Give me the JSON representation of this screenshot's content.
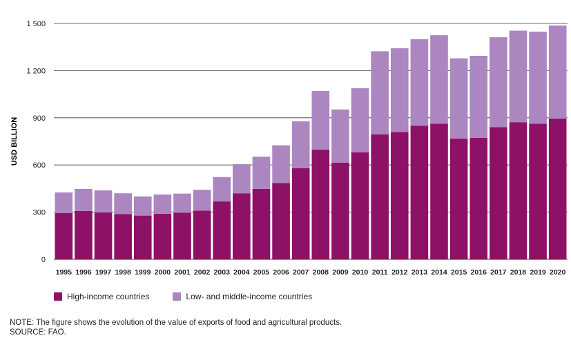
{
  "chart_data": {
    "type": "bar",
    "stacked": true,
    "categories": [
      "1995",
      "1996",
      "1997",
      "1998",
      "1999",
      "2000",
      "2001",
      "2002",
      "2003",
      "2004",
      "2005",
      "2006",
      "2007",
      "2008",
      "2009",
      "2010",
      "2011",
      "2012",
      "2013",
      "2014",
      "2015",
      "2016",
      "2017",
      "2018",
      "2019",
      "2020"
    ],
    "series": [
      {
        "name": "High-income countries",
        "color": "#8e1168",
        "values": [
          295,
          308,
          298,
          288,
          278,
          290,
          296,
          310,
          368,
          420,
          448,
          485,
          580,
          698,
          615,
          680,
          795,
          810,
          850,
          862,
          768,
          772,
          840,
          872,
          862,
          895
        ]
      },
      {
        "name": "Low- and middle-income countries",
        "color": "#ab86c0",
        "values": [
          130,
          140,
          140,
          132,
          122,
          122,
          122,
          132,
          155,
          185,
          205,
          240,
          298,
          372,
          338,
          408,
          528,
          532,
          550,
          563,
          510,
          522,
          572,
          582,
          586,
          592
        ]
      }
    ],
    "ylabel": "USD BILLION",
    "ylim": [
      0,
      1500
    ],
    "yticks": [
      {
        "value": 0,
        "label": "0"
      },
      {
        "value": 300,
        "label": "300"
      },
      {
        "value": 600,
        "label": "600"
      },
      {
        "value": 900,
        "label": "900"
      },
      {
        "value": 1200,
        "label": "1 200"
      },
      {
        "value": 1500,
        "label": "1 500"
      }
    ],
    "grid": true,
    "legend_position": "bottom-left"
  },
  "note": "NOTE: The figure shows the evolution of the value of exports of food and agricultural products.",
  "source": "SOURCE: FAO."
}
